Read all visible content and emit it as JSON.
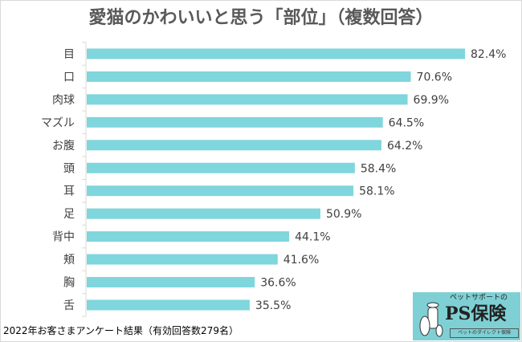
{
  "chart_data": {
    "type": "bar",
    "orientation": "horizontal",
    "title": "愛猫のかわいいと思う「部位」（複数回答）",
    "categories": [
      "目",
      "口",
      "肉球",
      "マズル",
      "お腹",
      "頭",
      "耳",
      "足",
      "背中",
      "頬",
      "胸",
      "舌"
    ],
    "values": [
      82.4,
      70.6,
      69.9,
      64.5,
      64.2,
      58.4,
      58.1,
      50.9,
      44.1,
      41.6,
      36.6,
      35.5
    ],
    "data_labels": [
      "82.4%",
      "70.6%",
      "69.9%",
      "64.5%",
      "64.2%",
      "58.4%",
      "58.1%",
      "50.9%",
      "44.1%",
      "41.6%",
      "36.6%",
      "35.5%"
    ],
    "unit": "%",
    "xlim": [
      0,
      100
    ],
    "grid": false,
    "bar_color": "#7fd6dc"
  },
  "footer": "2022年お客さまアンケート結果（有効回答数279名）",
  "logo": {
    "sub": "ペットサポートの",
    "main": "PS保険",
    "tag": "ペットのダイレクト保険"
  }
}
